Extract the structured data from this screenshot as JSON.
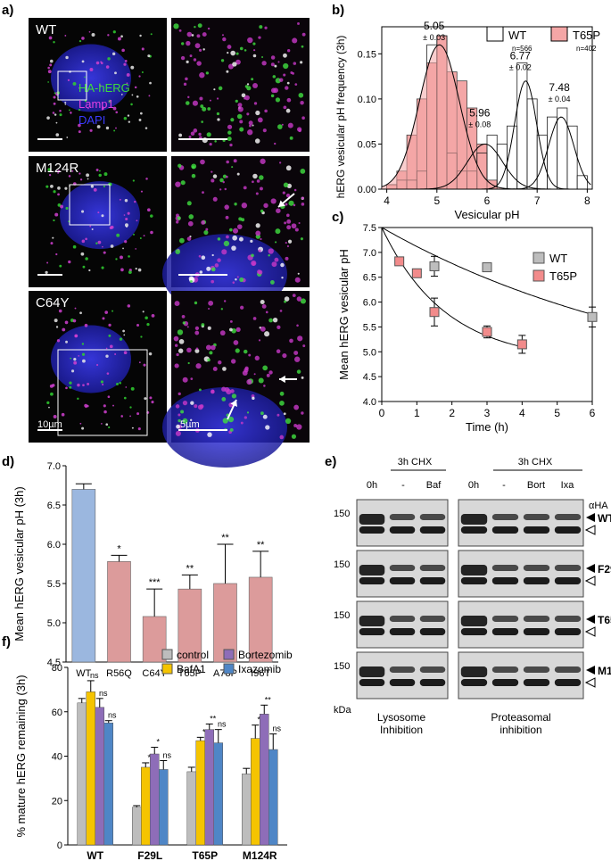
{
  "panel_labels": {
    "a": "a)",
    "b": "b)",
    "c": "c)",
    "d": "d)",
    "e": "e)",
    "f": "f)"
  },
  "micrographs": {
    "rows": [
      {
        "name": "WT",
        "scale_bar": ""
      },
      {
        "name": "M124R",
        "scale_bar": ""
      },
      {
        "name": "C64Y",
        "scale_bar": "10µm",
        "zoom_scale_bar": "5µm"
      }
    ],
    "channel_legend": [
      {
        "label": "HA-hERG",
        "color": "#3ddc3d"
      },
      {
        "label": "Lamp1",
        "color": "#e040e0"
      },
      {
        "label": "DAPI",
        "color": "#3a3aff"
      }
    ]
  },
  "chart_data": [
    {
      "panel": "b",
      "type": "bar",
      "subtype": "histogram-with-gaussian-fits",
      "xlabel": "Vesicular pH",
      "ylabel": "hERG vesicular pH frequency (3h)",
      "xlim": [
        3.9,
        8.1
      ],
      "ylim": [
        0,
        0.18
      ],
      "xticks": [
        "4",
        "5",
        "6",
        "7",
        "8"
      ],
      "yticks": [
        "0.00",
        "0.05",
        "0.10",
        "0.15"
      ],
      "legend": [
        {
          "name": "WT",
          "fill": "#ffffff",
          "n": "n=566"
        },
        {
          "name": "T65P",
          "fill": "#f4a6a6",
          "n": "n=402"
        }
      ],
      "bin_width": 0.2,
      "series": [
        {
          "name": "T65P",
          "color": "#f4a6a6",
          "bins": [
            4.1,
            4.3,
            4.5,
            4.7,
            4.9,
            5.1,
            5.3,
            5.5,
            5.7,
            5.9,
            6.1
          ],
          "values": [
            0.005,
            0.02,
            0.06,
            0.1,
            0.14,
            0.17,
            0.13,
            0.12,
            0.09,
            0.05,
            0.01
          ]
        },
        {
          "name": "WT",
          "color": "#ffffff",
          "bins": [
            4.1,
            4.3,
            4.5,
            4.7,
            4.9,
            5.1,
            5.3,
            5.5,
            5.7,
            5.9,
            6.1,
            6.3,
            6.5,
            6.7,
            6.9,
            7.1,
            7.3,
            7.5,
            7.7,
            7.9
          ],
          "values": [
            0.005,
            0.01,
            0.01,
            0.02,
            0.16,
            0.17,
            0.04,
            0.02,
            0.02,
            0.04,
            0.06,
            0.05,
            0.07,
            0.14,
            0.1,
            0.06,
            0.08,
            0.09,
            0.07,
            0.015
          ]
        }
      ],
      "fits": [
        {
          "series": "T65P",
          "mean": 5.05,
          "amp": 0.16,
          "sd": 0.4
        },
        {
          "series": "WT",
          "mean": 5.96,
          "amp": 0.05,
          "sd": 0.35
        },
        {
          "series": "WT",
          "mean": 6.77,
          "amp": 0.12,
          "sd": 0.22
        },
        {
          "series": "WT",
          "mean": 7.48,
          "amp": 0.08,
          "sd": 0.25
        }
      ],
      "annotations": [
        {
          "value": "5.05",
          "err": "± 0.03",
          "x": 5.05,
          "y": 0.163
        },
        {
          "value": "5.96",
          "err": "± 0.08",
          "x": 5.96,
          "y": 0.067
        },
        {
          "value": "6.77",
          "err": "± 0.02",
          "x": 6.77,
          "y": 0.13
        },
        {
          "value": "7.48",
          "err": "± 0.04",
          "x": 7.55,
          "y": 0.095
        }
      ]
    },
    {
      "panel": "c",
      "type": "scatter",
      "subtype": "with-decay-fits",
      "xlabel": "Time (h)",
      "ylabel": "Mean hERG vesicular pH",
      "xlim": [
        0,
        6
      ],
      "ylim": [
        4.0,
        7.5
      ],
      "xticks": [
        "0",
        "1",
        "2",
        "3",
        "4",
        "5",
        "6"
      ],
      "yticks": [
        "4.0",
        "4.5",
        "5.0",
        "5.5",
        "6.0",
        "6.5",
        "7.0",
        "7.5"
      ],
      "legend": [
        {
          "name": "WT",
          "color": "#bdbdbd"
        },
        {
          "name": "T65P",
          "color": "#f28b8b"
        }
      ],
      "series": [
        {
          "name": "WT",
          "color": "#bdbdbd",
          "x": [
            1.5,
            3,
            6
          ],
          "y": [
            6.72,
            6.7,
            5.7
          ],
          "err": [
            0.2,
            0.0,
            0.2
          ]
        },
        {
          "name": "T65P",
          "color": "#f28b8b",
          "x": [
            0.5,
            1,
            1.5,
            3,
            4
          ],
          "y": [
            6.82,
            6.58,
            5.8,
            5.4,
            5.15
          ],
          "err": [
            0,
            0,
            0.28,
            0.12,
            0.18
          ]
        }
      ],
      "fits": [
        {
          "series": "WT",
          "start": 7.5,
          "end_pH": 5.75,
          "x_end": 6
        },
        {
          "series": "T65P",
          "start": 7.5,
          "plateau": 4.8,
          "k": 0.55,
          "x_end": 4
        }
      ]
    },
    {
      "panel": "d",
      "type": "bar",
      "xlabel": "",
      "ylabel": "Mean hERG vesicular pH (3h)",
      "ylim": [
        4.5,
        7.0
      ],
      "yticks": [
        "4.5",
        "5.0",
        "5.5",
        "6.0",
        "6.5",
        "7.0"
      ],
      "categories": [
        "WT",
        "R56Q",
        "C64Y",
        "T65P",
        "A78P",
        "I96T"
      ],
      "values": [
        6.7,
        5.78,
        5.08,
        5.43,
        5.5,
        5.58
      ],
      "errors": [
        0.07,
        0.08,
        0.35,
        0.18,
        0.5,
        0.33
      ],
      "significance": [
        "",
        "*",
        "***",
        "**",
        "**",
        "**"
      ],
      "colors": [
        "#9bb7df",
        "#dc9b9b",
        "#dc9b9b",
        "#dc9b9b",
        "#dc9b9b",
        "#dc9b9b"
      ]
    },
    {
      "panel": "f",
      "type": "bar",
      "ylabel": "% mature hERG remaining (3h)",
      "ylim": [
        0,
        80
      ],
      "yticks": [
        "0",
        "20",
        "40",
        "60",
        "80"
      ],
      "categories": [
        "WT",
        "F29L",
        "T65P",
        "M124R"
      ],
      "series": [
        {
          "name": "control",
          "color": "#bdbdbd",
          "values": [
            64,
            17,
            33,
            32
          ],
          "errors": [
            2,
            0.7,
            2,
            2.5
          ],
          "sig": [
            "",
            "",
            "",
            ""
          ]
        },
        {
          "name": "BafA1",
          "color": "#f5c400",
          "values": [
            69,
            35,
            47,
            48
          ],
          "errors": [
            5,
            2,
            1.5,
            6
          ],
          "sig": [
            "ns",
            "*",
            "*",
            "*"
          ]
        },
        {
          "name": "Bortezomib",
          "color": "#8e6db8",
          "values": [
            62,
            41,
            52,
            59
          ],
          "errors": [
            4,
            3,
            2.5,
            4
          ],
          "sig": [
            "ns",
            "*",
            "**",
            "**"
          ]
        },
        {
          "name": "Ixazomib",
          "color": "#4f86c6",
          "values": [
            55,
            34,
            46,
            43
          ],
          "errors": [
            1,
            4,
            6,
            7
          ],
          "sig": [
            "ns",
            "ns",
            "ns",
            "ns"
          ]
        }
      ],
      "legend_order": [
        "control",
        "BafA1",
        "Bortezomib",
        "Ixazomib"
      ]
    }
  ],
  "blot": {
    "header_cond_left": "3h CHX",
    "header_cond_right": "3h CHX",
    "lanes_left": [
      "0h",
      "-",
      "Baf"
    ],
    "lanes_right": [
      "0h",
      "-",
      "Bort",
      "Ixa"
    ],
    "antibody": "αHA",
    "marker": "150",
    "unit": "kDa",
    "rows": [
      "WT",
      "F29L",
      "T65P",
      "M124R"
    ],
    "caption_left": [
      "Lysosome",
      "Inhibition"
    ],
    "caption_right": [
      "Proteasomal",
      "inhibition"
    ]
  }
}
